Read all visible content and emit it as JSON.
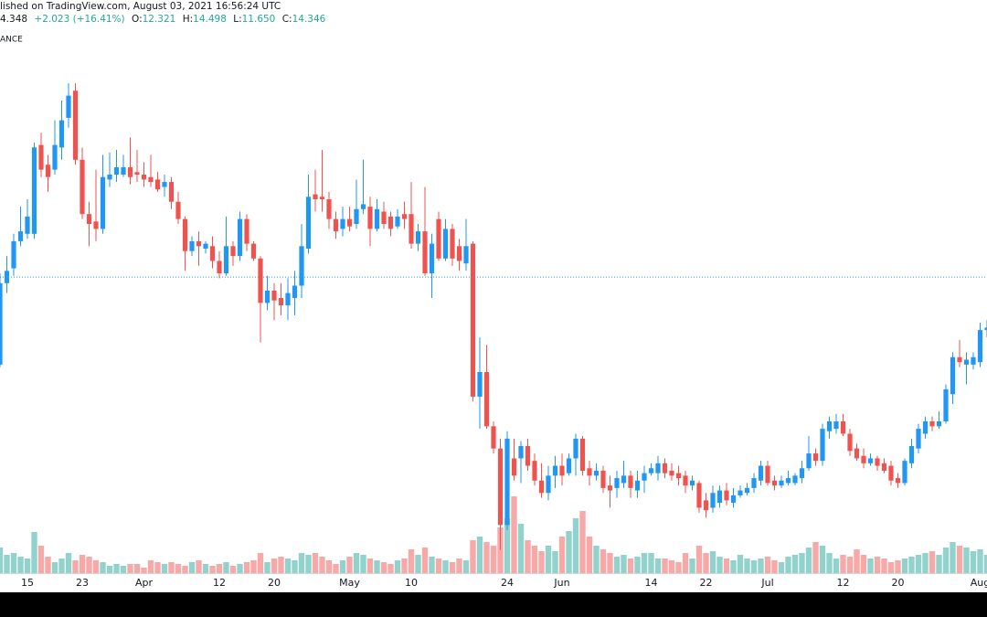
{
  "header": {
    "published": "lished on TradingView.com, August 03, 2021 16:56:24 UTC",
    "price": "4.348",
    "change": "+2.023 (+16.41%)",
    "open_label": "O:",
    "open": "12.321",
    "high_label": "H:",
    "high": "14.498",
    "low_label": "L:",
    "low": "11.650",
    "close_label": "C:",
    "close": "14.346",
    "exchange": "ANCE"
  },
  "chart_data": {
    "type": "candlestick",
    "dates": [
      "Mar 11",
      "Mar 12",
      "Mar 13",
      "Mar 14",
      "Mar 15",
      "Mar 16",
      "Mar 17",
      "Mar 18",
      "Mar 19",
      "Mar 20",
      "Mar 21",
      "Mar 22",
      "Mar 23",
      "Mar 24",
      "Mar 25",
      "Mar 26",
      "Mar 27",
      "Mar 28",
      "Mar 29",
      "Mar 30",
      "Mar 31",
      "Apr 1",
      "Apr 2",
      "Apr 3",
      "Apr 4",
      "Apr 5",
      "Apr 6",
      "Apr 7",
      "Apr 8",
      "Apr 9",
      "Apr 10",
      "Apr 11",
      "Apr 12",
      "Apr 13",
      "Apr 14",
      "Apr 15",
      "Apr 16",
      "Apr 17",
      "Apr 18",
      "Apr 19",
      "Apr 20",
      "Apr 21",
      "Apr 22",
      "Apr 23",
      "Apr 24",
      "Apr 25",
      "Apr 26",
      "Apr 27",
      "Apr 28",
      "Apr 29",
      "Apr 30",
      "May 1",
      "May 2",
      "May 3",
      "May 4",
      "May 5",
      "May 6",
      "May 7",
      "May 8",
      "May 9",
      "May 10",
      "May 11",
      "May 12",
      "May 13",
      "May 14",
      "May 15",
      "May 16",
      "May 17",
      "May 18",
      "May 19",
      "May 20",
      "May 21",
      "May 22",
      "May 23",
      "May 24",
      "May 25",
      "May 26",
      "May 27",
      "May 28",
      "May 29",
      "May 30",
      "May 31",
      "Jun 1",
      "Jun 2",
      "Jun 3",
      "Jun 4",
      "Jun 5",
      "Jun 6",
      "Jun 7",
      "Jun 8",
      "Jun 9",
      "Jun 10",
      "Jun 11",
      "Jun 12",
      "Jun 13",
      "Jun 14",
      "Jun 15",
      "Jun 16",
      "Jun 17",
      "Jun 18",
      "Jun 19",
      "Jun 20",
      "Jun 21",
      "Jun 22",
      "Jun 23",
      "Jun 24",
      "Jun 25",
      "Jun 26",
      "Jun 27",
      "Jun 28",
      "Jun 29",
      "Jun 30",
      "Jul 1",
      "Jul 2",
      "Jul 3",
      "Jul 4",
      "Jul 5",
      "Jul 6",
      "Jul 7",
      "Jul 8",
      "Jul 9",
      "Jul 10",
      "Jul 11",
      "Jul 12",
      "Jul 13",
      "Jul 14",
      "Jul 15",
      "Jul 16",
      "Jul 17",
      "Jul 18",
      "Jul 19",
      "Jul 20",
      "Jul 21",
      "Jul 22",
      "Jul 23",
      "Jul 24",
      "Jul 25",
      "Jul 26",
      "Jul 27",
      "Jul 28",
      "Jul 29",
      "Jul 30",
      "Jul 31",
      "Aug 1",
      "Aug 2"
    ],
    "open": [
      10.8,
      14.1,
      14.7,
      15.8,
      16.1,
      16.1,
      19.7,
      18.9,
      18.7,
      19.6,
      20.8,
      21.9,
      19.1,
      16.9,
      16.6,
      16.3,
      18.3,
      18.5,
      18.5,
      18.8,
      18.6,
      18.5,
      18.4,
      18.3,
      18.0,
      18.2,
      17.4,
      16.7,
      15.4,
      15.8,
      15.5,
      15.6,
      15.0,
      14.5,
      15.6,
      15.2,
      16.7,
      15.7,
      15.1,
      13.3,
      13.8,
      13.5,
      13.2,
      13.5,
      14.0,
      15.5,
      17.7,
      17.6,
      17.5,
      16.7,
      16.3,
      16.7,
      16.5,
      17.1,
      17.2,
      16.3,
      17.0,
      16.8,
      16.4,
      16.9,
      16.9,
      15.7,
      16.2,
      14.5,
      16.7,
      15.1,
      16.3,
      15.6,
      14.9,
      15.7,
      9.5,
      10.5,
      8.3,
      7.4,
      4.3,
      7.0,
      7.0,
      7.5,
      6.9,
      6.1,
      5.6,
      6.3,
      6.7,
      6.4,
      7.0,
      7.8,
      6.6,
      6.3,
      6.5,
      5.9,
      5.8,
      6.0,
      6.3,
      5.7,
      6.1,
      6.4,
      6.4,
      6.8,
      6.5,
      6.4,
      6.3,
      5.9,
      6.0,
      5.3,
      5.0,
      5.2,
      5.7,
      5.2,
      5.5,
      5.6,
      5.8,
      6.1,
      6.7,
      6.1,
      5.9,
      6.0,
      6.0,
      6.2,
      6.6,
      7.2,
      6.9,
      8.1,
      8.2,
      8.5,
      8.0,
      7.4,
      7.1,
      6.8,
      7.0,
      6.8,
      6.7,
      6.2,
      6.0,
      6.8,
      7.4,
      8.0,
      8.5,
      8.3,
      8.5,
      9.6,
      11.1,
      10.8,
      10.8,
      10.9,
      12.2
    ],
    "high": [
      14.5,
      15.2,
      16.1,
      17.2,
      17.5,
      19.8,
      20.2,
      19.3,
      20.7,
      21.5,
      22.2,
      22.2,
      19.6,
      17.4,
      18.7,
      19.3,
      19.4,
      19.5,
      19.3,
      20.0,
      19.5,
      19.0,
      19.3,
      18.6,
      18.5,
      18.4,
      17.8,
      16.8,
      16.0,
      16.2,
      15.8,
      16.0,
      15.4,
      16.8,
      15.8,
      17.0,
      16.9,
      15.8,
      15.2,
      14.4,
      14.1,
      14.1,
      14.3,
      14.6,
      16.5,
      18.5,
      18.7,
      19.5,
      17.8,
      17.0,
      17.2,
      17.2,
      18.3,
      19.1,
      17.6,
      17.5,
      17.4,
      17.0,
      17.1,
      17.4,
      18.2,
      16.5,
      18.0,
      16.1,
      17.0,
      16.7,
      16.5,
      15.9,
      16.7,
      15.8,
      11.9,
      11.6,
      8.5,
      7.8,
      8.1,
      7.8,
      7.7,
      7.8,
      7.2,
      6.8,
      6.7,
      7.1,
      7.2,
      7.2,
      8.0,
      7.9,
      6.9,
      6.8,
      6.7,
      6.3,
      6.5,
      6.9,
      6.5,
      6.5,
      6.7,
      6.8,
      7.1,
      7.0,
      6.8,
      6.7,
      6.5,
      6.3,
      6.1,
      5.6,
      5.9,
      5.9,
      6.0,
      5.8,
      5.9,
      6.0,
      6.4,
      6.9,
      6.9,
      6.3,
      6.3,
      6.5,
      6.4,
      6.9,
      7.9,
      7.4,
      8.4,
      8.7,
      8.8,
      8.8,
      8.2,
      7.6,
      7.4,
      7.2,
      7.1,
      7.0,
      6.9,
      6.4,
      7.0,
      7.8,
      8.4,
      8.7,
      8.7,
      8.9,
      10.0,
      11.3,
      11.8,
      11.3,
      11.3,
      12.5,
      12.6
    ],
    "low": [
      10.7,
      13.7,
      14.4,
      15.6,
      15.9,
      15.9,
      18.4,
      17.8,
      18.5,
      19.1,
      20.4,
      18.9,
      16.7,
      15.6,
      15.8,
      16.1,
      18.0,
      18.2,
      18.4,
      18.1,
      18.2,
      18.0,
      18.0,
      17.8,
      17.6,
      17.1,
      16.5,
      14.6,
      15.2,
      14.8,
      15.3,
      14.7,
      14.3,
      14.4,
      14.8,
      15.0,
      15.4,
      15.0,
      11.7,
      13.0,
      12.6,
      12.8,
      12.6,
      12.8,
      13.5,
      15.3,
      17.0,
      17.0,
      16.3,
      15.9,
      16.0,
      16.2,
      16.3,
      16.9,
      15.6,
      16.2,
      16.3,
      16.0,
      16.3,
      16.3,
      15.5,
      15.4,
      14.4,
      13.5,
      15.0,
      15.0,
      14.8,
      14.6,
      14.6,
      9.3,
      8.2,
      8.2,
      7.2,
      3.3,
      4.1,
      6.1,
      6.0,
      6.5,
      5.9,
      5.4,
      5.3,
      5.8,
      5.9,
      6.3,
      6.3,
      6.3,
      5.9,
      6.1,
      5.6,
      5.0,
      5.4,
      5.8,
      5.4,
      5.4,
      5.6,
      6.3,
      6.1,
      6.2,
      6.1,
      5.9,
      5.6,
      5.7,
      4.8,
      4.6,
      4.8,
      5.0,
      5.1,
      5.0,
      5.4,
      5.5,
      5.6,
      5.9,
      5.9,
      5.7,
      5.8,
      5.9,
      5.9,
      6.0,
      6.5,
      6.7,
      6.7,
      7.8,
      8.0,
      7.9,
      7.1,
      6.9,
      6.6,
      6.7,
      6.5,
      6.4,
      5.9,
      5.8,
      5.9,
      6.6,
      7.2,
      7.8,
      8.1,
      8.2,
      8.4,
      9.2,
      10.7,
      10.0,
      10.6,
      10.7,
      11.9
    ],
    "close": [
      14.1,
      14.6,
      15.8,
      16.2,
      16.8,
      19.6,
      18.7,
      18.4,
      19.7,
      20.7,
      21.7,
      19.1,
      16.9,
      16.5,
      16.3,
      18.4,
      18.5,
      18.8,
      18.8,
      18.4,
      18.5,
      18.3,
      18.2,
      17.9,
      18.2,
      17.4,
      16.7,
      15.4,
      15.8,
      15.6,
      15.7,
      15.0,
      14.5,
      15.6,
      15.2,
      16.7,
      15.7,
      15.1,
      13.3,
      13.8,
      13.4,
      13.2,
      13.7,
      14.0,
      15.6,
      17.6,
      17.5,
      17.5,
      16.7,
      16.2,
      16.7,
      16.4,
      17.1,
      17.3,
      16.3,
      17.1,
      16.5,
      16.3,
      16.8,
      16.7,
      15.7,
      16.2,
      14.5,
      15.7,
      15.1,
      16.3,
      15.1,
      15.0,
      15.6,
      9.5,
      10.5,
      8.3,
      7.4,
      4.3,
      7.8,
      6.3,
      7.5,
      6.7,
      6.1,
      5.6,
      6.3,
      6.7,
      6.3,
      7.0,
      7.8,
      6.5,
      6.3,
      6.5,
      5.8,
      5.7,
      6.2,
      6.3,
      5.8,
      6.1,
      6.4,
      6.6,
      6.8,
      6.4,
      6.3,
      6.2,
      5.9,
      6.1,
      5.0,
      4.9,
      5.6,
      5.7,
      5.3,
      5.5,
      5.7,
      5.8,
      6.2,
      6.7,
      6.0,
      5.9,
      6.1,
      6.2,
      6.3,
      6.6,
      7.2,
      6.9,
      8.2,
      8.5,
      8.5,
      8.0,
      7.3,
      7.0,
      6.8,
      7.0,
      6.7,
      6.5,
      6.1,
      6.0,
      6.9,
      7.5,
      8.2,
      8.5,
      8.3,
      8.5,
      9.8,
      11.1,
      10.9,
      11.0,
      11.1,
      12.2,
      12.3
    ],
    "volume": [
      28,
      20,
      22,
      18,
      16,
      45,
      30,
      18,
      12,
      16,
      22,
      14,
      20,
      18,
      14,
      12,
      8,
      10,
      8,
      10,
      10,
      6,
      14,
      12,
      10,
      12,
      10,
      8,
      12,
      14,
      10,
      8,
      10,
      12,
      8,
      10,
      12,
      14,
      22,
      12,
      16,
      18,
      16,
      14,
      22,
      20,
      22,
      18,
      14,
      10,
      14,
      18,
      22,
      20,
      16,
      14,
      12,
      10,
      14,
      16,
      26,
      20,
      28,
      18,
      16,
      14,
      12,
      16,
      14,
      36,
      40,
      34,
      30,
      50,
      60,
      84,
      54,
      36,
      30,
      24,
      30,
      24,
      40,
      46,
      60,
      68,
      40,
      30,
      26,
      22,
      18,
      20,
      16,
      18,
      22,
      22,
      16,
      16,
      14,
      12,
      22,
      16,
      30,
      22,
      24,
      18,
      16,
      14,
      20,
      16,
      14,
      16,
      18,
      14,
      12,
      18,
      20,
      22,
      28,
      34,
      30,
      22,
      16,
      20,
      18,
      26,
      20,
      16,
      18,
      16,
      12,
      14,
      16,
      18,
      20,
      22,
      24,
      20,
      28,
      34,
      30,
      28,
      24,
      26,
      20
    ],
    "ylim": [
      2.35,
      24.39
    ],
    "vlim": [
      0,
      200
    ],
    "price_line": 14.346,
    "xticks": [
      {
        "value": "Mar 15",
        "label": "15"
      },
      {
        "value": "Mar 23",
        "label": "23"
      },
      {
        "value": "Apr 1",
        "label": "Apr"
      },
      {
        "value": "Apr 12",
        "label": "12"
      },
      {
        "value": "Apr 20",
        "label": "20"
      },
      {
        "value": "May 1",
        "label": "May"
      },
      {
        "value": "May 10",
        "label": "10"
      },
      {
        "value": "May 24",
        "label": "24"
      },
      {
        "value": "Jun 1",
        "label": "Jun"
      },
      {
        "value": "Jun 14",
        "label": "14"
      },
      {
        "value": "Jun 22",
        "label": "22"
      },
      {
        "value": "Jul 1",
        "label": "Jul"
      },
      {
        "value": "Jul 12",
        "label": "12"
      },
      {
        "value": "Jul 20",
        "label": "20"
      },
      {
        "value": "Aug 1",
        "label": "Aug"
      }
    ],
    "up_color": "#2196f3",
    "down_color": "#ef5350",
    "volume_up_color": "#92d2cc",
    "volume_down_color": "#f7a9a7",
    "price_line_color": "#2196f3"
  }
}
